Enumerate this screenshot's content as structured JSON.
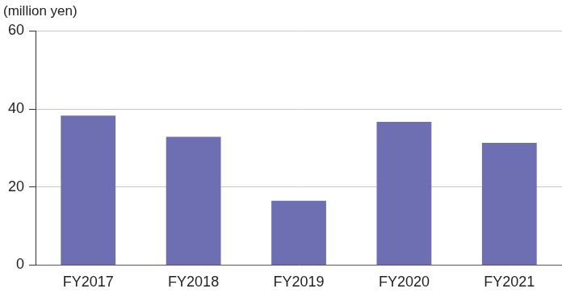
{
  "chart_data": {
    "type": "bar",
    "y_label": "(million yen)",
    "categories": [
      "FY2017",
      "FY2018",
      "FY2019",
      "FY2020",
      "FY2021"
    ],
    "values": [
      38.3,
      32.9,
      16.5,
      36.7,
      31.3
    ],
    "color": "#6e6eb2",
    "ylim": [
      0,
      60
    ],
    "yticks": [
      0,
      20,
      40,
      60
    ],
    "grid": true
  }
}
